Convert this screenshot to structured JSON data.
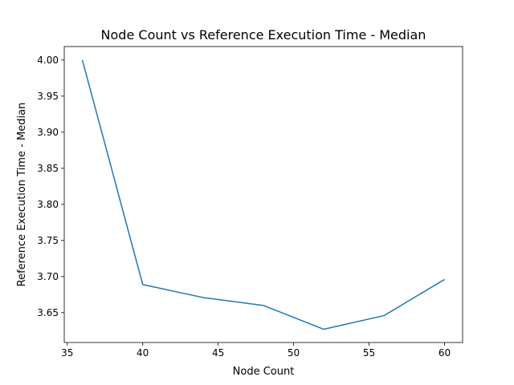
{
  "chart_data": {
    "type": "line",
    "title": "Node Count vs Reference Execution Time - Median",
    "xlabel": "Node Count",
    "ylabel": "Reference Execution Time - Median",
    "xlim": [
      34.8,
      61.2
    ],
    "ylim": [
      3.6087,
      4.0187
    ],
    "xticks": [
      35,
      40,
      45,
      50,
      55,
      60
    ],
    "xtick_labels": [
      "35",
      "40",
      "45",
      "50",
      "55",
      "60"
    ],
    "yticks": [
      3.65,
      3.7,
      3.75,
      3.8,
      3.85,
      3.9,
      3.95,
      4.0
    ],
    "ytick_labels": [
      "3.65",
      "3.70",
      "3.75",
      "3.80",
      "3.85",
      "3.90",
      "3.95",
      "4.00"
    ],
    "grid": false,
    "series": [
      {
        "color": "#1f77b4",
        "x": [
          36,
          40,
          44,
          48,
          52,
          56,
          60
        ],
        "y": [
          4.0,
          3.689,
          3.671,
          3.66,
          3.627,
          3.646,
          3.696
        ]
      }
    ]
  }
}
